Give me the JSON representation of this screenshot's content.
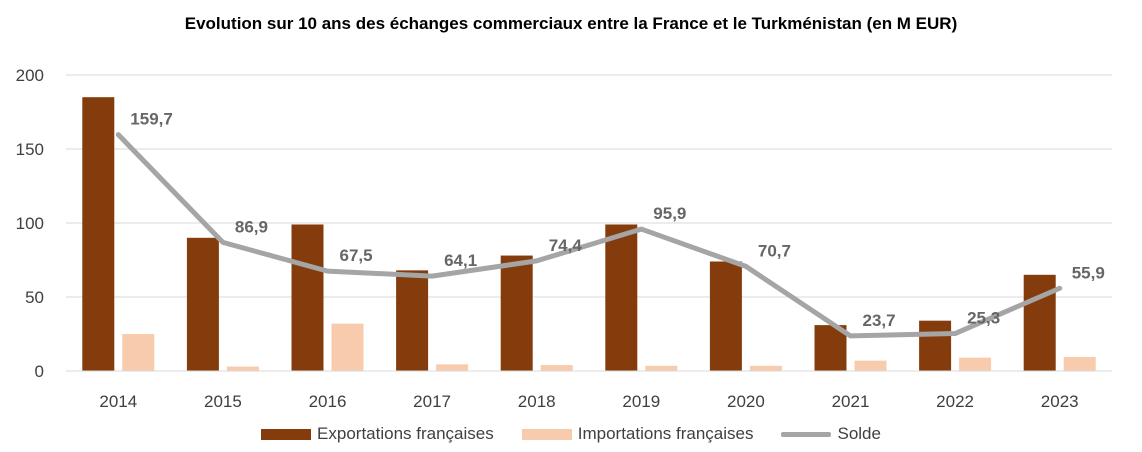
{
  "chart_data": {
    "type": "bar",
    "title": "Evolution sur 10 ans des échanges commerciaux entre la France et le Turkménistan (en M EUR)",
    "categories": [
      "2014",
      "2015",
      "2016",
      "2017",
      "2018",
      "2019",
      "2020",
      "2021",
      "2022",
      "2023"
    ],
    "ylim": [
      0,
      200
    ],
    "yticks": [
      0,
      50,
      100,
      150,
      200
    ],
    "grid": true,
    "legend_position": "bottom",
    "series": [
      {
        "name": "Exportations françaises",
        "kind": "bar",
        "color": "#843c0c",
        "values": [
          185,
          90,
          99,
          68,
          78,
          99,
          74,
          31,
          34,
          65
        ]
      },
      {
        "name": "Importations françaises",
        "kind": "bar",
        "color": "#f8cbad",
        "values": [
          25,
          3,
          32,
          4.5,
          4,
          3.5,
          3.5,
          7,
          9,
          9.5
        ]
      },
      {
        "name": "Solde",
        "kind": "line",
        "color": "#a5a5a5",
        "values": [
          159.7,
          86.9,
          67.5,
          64.1,
          74.4,
          95.9,
          70.7,
          23.7,
          25.3,
          55.9
        ],
        "labels": [
          "159,7",
          "86,9",
          "67,5",
          "64,1",
          "74,4",
          "95,9",
          "70,7",
          "23,7",
          "25,3",
          "55,9"
        ]
      }
    ]
  }
}
